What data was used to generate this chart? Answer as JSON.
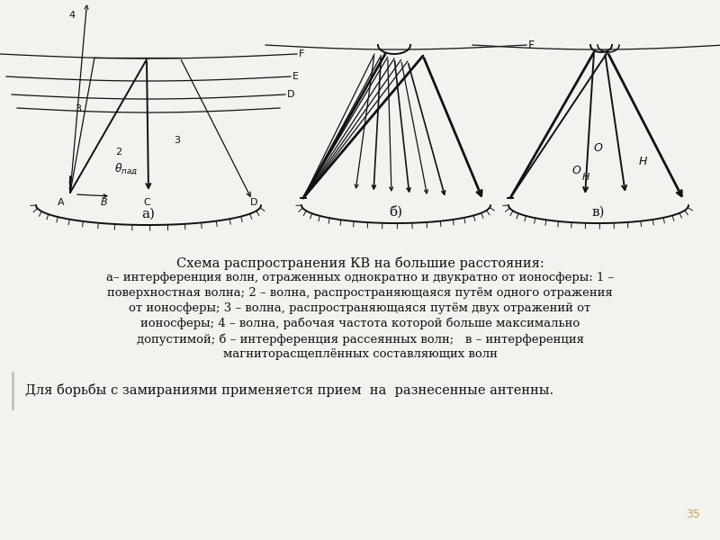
{
  "bg_color": "#f2f2ee",
  "title_text": "Схема распространения КВ на большие расстояния:",
  "caption_lines": [
    "а– интерференция волн, отраженных однократно и двукратно от ионосферы: 1 –",
    "поверхностная волна; 2 – волна, распространяющаяся путём одного отражения",
    "от ионосферы; 3 – волна, распространяющаяся путём двух отражений от",
    "ионосферы; 4 – волна, рабочая частота которой больше максимально",
    "допустимой; б – интерференция рассеянных волн;   в – интерференция",
    "магниторасщеплённых составляющих волн"
  ],
  "bottom_text": "Для борьбы с замираниями применяется прием  на  разнесенные антенны.",
  "page_number": "35",
  "lc": "#111111",
  "lw_thin": 0.9,
  "lw_med": 1.4,
  "lw_thick": 2.0
}
